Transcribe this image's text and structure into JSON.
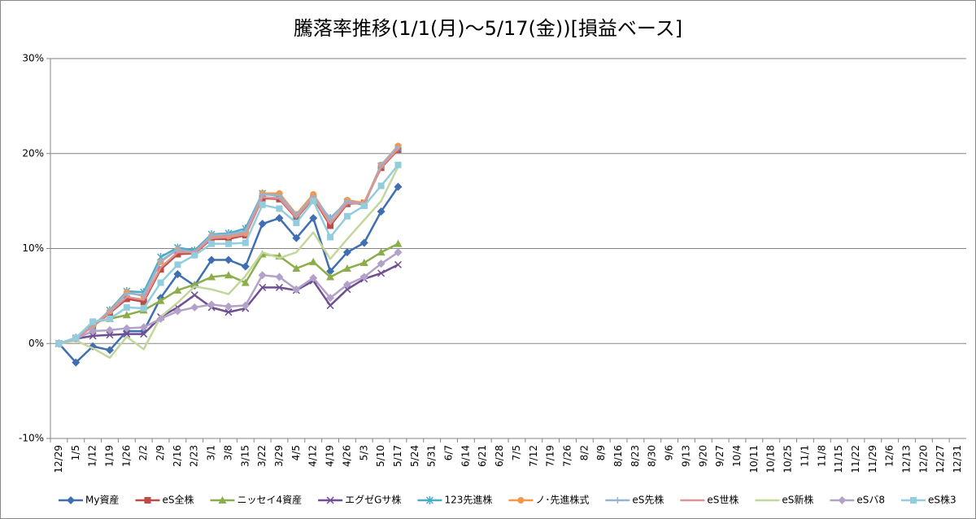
{
  "chart_data": {
    "type": "line",
    "title": "騰落率推移(1/1(月)～5/17(金))[損益ベース]",
    "categories": [
      "12/29",
      "1/5",
      "1/12",
      "1/19",
      "1/26",
      "2/2",
      "2/9",
      "2/16",
      "2/23",
      "3/1",
      "3/8",
      "3/15",
      "3/22",
      "3/29",
      "4/5",
      "4/12",
      "4/19",
      "4/26",
      "5/3",
      "5/10",
      "5/17",
      "5/24",
      "5/31",
      "6/7",
      "6/14",
      "6/21",
      "6/28",
      "7/5",
      "7/12",
      "7/19",
      "7/26",
      "8/2",
      "8/9",
      "8/16",
      "8/23",
      "8/30",
      "9/6",
      "9/13",
      "9/20",
      "9/27",
      "10/4",
      "10/11",
      "10/18",
      "10/25",
      "11/1",
      "11/8",
      "11/15",
      "11/22",
      "11/29",
      "12/6",
      "12/13",
      "12/20",
      "12/27",
      "12/31"
    ],
    "ylim": [
      -10,
      30
    ],
    "yticks": [
      {
        "value": -10,
        "label": "-10%"
      },
      {
        "value": 0,
        "label": "0%"
      },
      {
        "value": 10,
        "label": "10%"
      },
      {
        "value": 20,
        "label": "20%"
      },
      {
        "value": 30,
        "label": "30%"
      }
    ],
    "grid": true,
    "legend": "bottom",
    "series": [
      {
        "name": "My資産",
        "color": "#3f6fb0",
        "marker": "diamond",
        "values": [
          0,
          -2.0,
          -0.3,
          -0.7,
          1.3,
          1.3,
          4.8,
          7.3,
          6.1,
          8.8,
          8.8,
          8.1,
          12.6,
          13.2,
          11.1,
          13.2,
          7.6,
          9.6,
          10.6,
          13.9,
          16.5,
          null,
          null,
          null,
          null,
          null,
          null,
          null,
          null,
          null,
          null,
          null,
          null,
          null,
          null,
          null,
          null,
          null,
          null,
          null,
          null,
          null,
          null,
          null,
          null,
          null,
          null,
          null,
          null,
          null,
          null,
          null,
          null,
          null
        ]
      },
      {
        "name": "eS全株",
        "color": "#be4b48",
        "marker": "square",
        "values": [
          0,
          0.5,
          1.8,
          3.2,
          4.7,
          4.4,
          7.8,
          9.4,
          9.5,
          11.0,
          11.0,
          11.4,
          15.3,
          15.2,
          13.2,
          15.3,
          12.4,
          14.7,
          14.8,
          18.5,
          20.4,
          null,
          null,
          null,
          null,
          null,
          null,
          null,
          null,
          null,
          null,
          null,
          null,
          null,
          null,
          null,
          null,
          null,
          null,
          null,
          null,
          null,
          null,
          null,
          null,
          null,
          null,
          null,
          null,
          null,
          null,
          null,
          null,
          null
        ]
      },
      {
        "name": "ニッセイ4資産",
        "color": "#8cae4a",
        "marker": "triangle",
        "values": [
          0,
          0.5,
          2.2,
          2.6,
          3.0,
          3.5,
          4.5,
          5.6,
          6.2,
          7.0,
          7.2,
          6.4,
          9.4,
          9.2,
          7.9,
          8.6,
          7.0,
          7.9,
          8.5,
          9.6,
          10.5,
          null,
          null,
          null,
          null,
          null,
          null,
          null,
          null,
          null,
          null,
          null,
          null,
          null,
          null,
          null,
          null,
          null,
          null,
          null,
          null,
          null,
          null,
          null,
          null,
          null,
          null,
          null,
          null,
          null,
          null,
          null,
          null,
          null
        ]
      },
      {
        "name": "エグゼGサ株",
        "color": "#6f4f91",
        "marker": "x",
        "values": [
          0,
          0.5,
          0.8,
          0.9,
          1.0,
          1.0,
          2.8,
          3.8,
          5.1,
          3.8,
          3.3,
          3.7,
          5.9,
          5.9,
          5.6,
          6.6,
          4.0,
          5.7,
          6.8,
          7.4,
          8.3,
          null,
          null,
          null,
          null,
          null,
          null,
          null,
          null,
          null,
          null,
          null,
          null,
          null,
          null,
          null,
          null,
          null,
          null,
          null,
          null,
          null,
          null,
          null,
          null,
          null,
          null,
          null,
          null,
          null,
          null,
          null,
          null,
          null
        ]
      },
      {
        "name": "123先進株",
        "color": "#4bacc6",
        "marker": "star",
        "values": [
          0,
          0.6,
          1.8,
          3.5,
          5.5,
          5.4,
          9.1,
          10.1,
          9.8,
          11.5,
          11.6,
          12.1,
          15.8,
          15.5,
          13.5,
          15.2,
          13.2,
          14.9,
          14.6,
          18.7,
          20.6,
          null,
          null,
          null,
          null,
          null,
          null,
          null,
          null,
          null,
          null,
          null,
          null,
          null,
          null,
          null,
          null,
          null,
          null,
          null,
          null,
          null,
          null,
          null,
          null,
          null,
          null,
          null,
          null,
          null,
          null,
          null,
          null,
          null
        ]
      },
      {
        "name": "ノ･先進株式",
        "color": "#f79646",
        "marker": "circle",
        "values": [
          0,
          0.6,
          1.9,
          3.4,
          5.4,
          5.0,
          8.6,
          9.9,
          9.5,
          11.3,
          11.3,
          11.6,
          15.8,
          15.8,
          13.6,
          15.7,
          13.0,
          15.1,
          14.8,
          18.8,
          20.8,
          null,
          null,
          null,
          null,
          null,
          null,
          null,
          null,
          null,
          null,
          null,
          null,
          null,
          null,
          null,
          null,
          null,
          null,
          null,
          null,
          null,
          null,
          null,
          null,
          null,
          null,
          null,
          null,
          null,
          null,
          null,
          null,
          null
        ]
      },
      {
        "name": "eS先株",
        "color": "#95b3d7",
        "marker": "plus",
        "values": [
          0,
          0.6,
          1.9,
          3.4,
          5.3,
          5.1,
          8.7,
          9.9,
          9.6,
          11.4,
          11.5,
          11.8,
          15.7,
          15.6,
          13.5,
          15.5,
          13.1,
          15.0,
          14.7,
          18.8,
          20.7,
          null,
          null,
          null,
          null,
          null,
          null,
          null,
          null,
          null,
          null,
          null,
          null,
          null,
          null,
          null,
          null,
          null,
          null,
          null,
          null,
          null,
          null,
          null,
          null,
          null,
          null,
          null,
          null,
          null,
          null,
          null,
          null,
          null
        ]
      },
      {
        "name": "eS世株",
        "color": "#d99694",
        "marker": "none",
        "values": [
          0,
          0.5,
          1.8,
          3.3,
          4.9,
          4.6,
          8.0,
          9.6,
          9.6,
          11.1,
          11.2,
          11.5,
          15.4,
          15.3,
          13.3,
          15.4,
          12.6,
          14.8,
          14.7,
          18.6,
          20.5,
          null,
          null,
          null,
          null,
          null,
          null,
          null,
          null,
          null,
          null,
          null,
          null,
          null,
          null,
          null,
          null,
          null,
          null,
          null,
          null,
          null,
          null,
          null,
          null,
          null,
          null,
          null,
          null,
          null,
          null,
          null,
          null,
          null
        ]
      },
      {
        "name": "eS新株",
        "color": "#c3d69b",
        "marker": "none",
        "values": [
          0,
          0.3,
          -0.5,
          -1.5,
          0.7,
          -0.6,
          2.8,
          4.3,
          6.0,
          5.7,
          5.2,
          7.1,
          9.6,
          9.0,
          9.6,
          11.7,
          8.9,
          11.0,
          13.0,
          15.0,
          18.6,
          null,
          null,
          null,
          null,
          null,
          null,
          null,
          null,
          null,
          null,
          null,
          null,
          null,
          null,
          null,
          null,
          null,
          null,
          null,
          null,
          null,
          null,
          null,
          null,
          null,
          null,
          null,
          null,
          null,
          null,
          null,
          null,
          null
        ]
      },
      {
        "name": "eSバ8",
        "color": "#b3a2c7",
        "marker": "diamond",
        "values": [
          0,
          0.5,
          1.3,
          1.4,
          1.6,
          1.7,
          2.6,
          3.4,
          3.8,
          4.1,
          3.9,
          4.0,
          7.2,
          7.0,
          5.7,
          6.9,
          4.8,
          6.2,
          7.0,
          8.4,
          9.6,
          null,
          null,
          null,
          null,
          null,
          null,
          null,
          null,
          null,
          null,
          null,
          null,
          null,
          null,
          null,
          null,
          null,
          null,
          null,
          null,
          null,
          null,
          null,
          null,
          null,
          null,
          null,
          null,
          null,
          null,
          null,
          null,
          null
        ]
      },
      {
        "name": "eS株3",
        "color": "#93cddd",
        "marker": "square",
        "values": [
          0,
          0.6,
          2.3,
          2.6,
          3.8,
          3.7,
          6.4,
          8.3,
          9.3,
          10.5,
          10.5,
          10.6,
          14.6,
          14.2,
          12.7,
          15.0,
          11.2,
          13.4,
          14.5,
          16.6,
          18.8,
          null,
          null,
          null,
          null,
          null,
          null,
          null,
          null,
          null,
          null,
          null,
          null,
          null,
          null,
          null,
          null,
          null,
          null,
          null,
          null,
          null,
          null,
          null,
          null,
          null,
          null,
          null,
          null,
          null,
          null,
          null,
          null,
          null
        ]
      }
    ]
  }
}
